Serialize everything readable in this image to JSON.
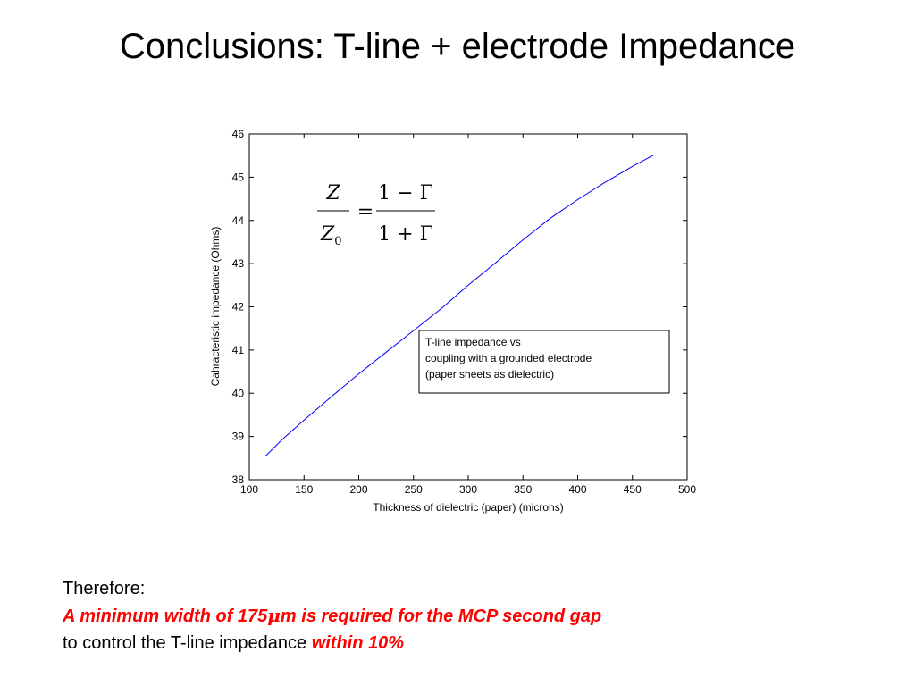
{
  "slide": {
    "title": "Conclusions: T-line + electrode Impedance"
  },
  "formula": {
    "lhs_numerator": "Z",
    "lhs_denominator_symbol": "Z",
    "lhs_denominator_subscript": "0",
    "equals": "=",
    "rhs_numerator": "1 − Γ",
    "rhs_denominator": "1 + Γ"
  },
  "chart_data": {
    "type": "line",
    "title": "",
    "xlabel": "Thickness of dielectric (paper)  (microns)",
    "ylabel": "Cahracteristic impedance (Ohms)",
    "xlim": [
      100,
      500
    ],
    "ylim": [
      38,
      46
    ],
    "xticks": [
      100,
      150,
      200,
      250,
      300,
      350,
      400,
      450,
      500
    ],
    "yticks": [
      38,
      39,
      40,
      41,
      42,
      43,
      44,
      45,
      46
    ],
    "grid": false,
    "series": [
      {
        "color": "#0000ff",
        "x": [
          115,
          130,
          150,
          175,
          200,
          225,
          250,
          275,
          300,
          325,
          350,
          375,
          400,
          425,
          450,
          470
        ],
        "y": [
          38.55,
          38.93,
          39.38,
          39.92,
          40.45,
          40.95,
          41.45,
          41.95,
          42.5,
          43.02,
          43.55,
          44.05,
          44.48,
          44.88,
          45.25,
          45.52
        ]
      }
    ],
    "annotation": {
      "lines": [
        "T-line impedance vs",
        "coupling with a grounded electrode",
        "(paper sheets as dielectric)"
      ]
    }
  },
  "conclusion": {
    "line1": "Therefore:",
    "line2_part1": "A minimum width of 175",
    "line2_mu": "μ",
    "line2_part2": "m is required for the MCP second gap",
    "line3_text": "to control the T-line impedance  ",
    "line3_emph": "within 10%"
  }
}
